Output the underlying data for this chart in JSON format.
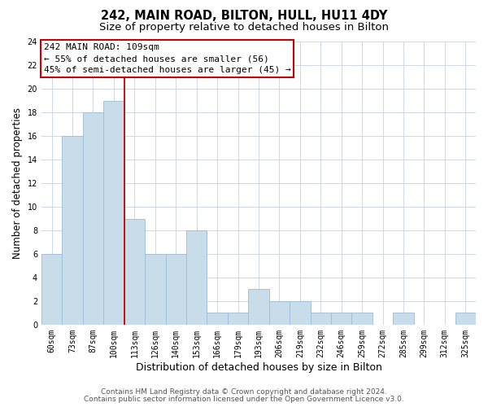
{
  "title": "242, MAIN ROAD, BILTON, HULL, HU11 4DY",
  "subtitle": "Size of property relative to detached houses in Bilton",
  "xlabel": "Distribution of detached houses by size in Bilton",
  "ylabel": "Number of detached properties",
  "categories": [
    "60sqm",
    "73sqm",
    "87sqm",
    "100sqm",
    "113sqm",
    "126sqm",
    "140sqm",
    "153sqm",
    "166sqm",
    "179sqm",
    "193sqm",
    "206sqm",
    "219sqm",
    "232sqm",
    "246sqm",
    "259sqm",
    "272sqm",
    "285sqm",
    "299sqm",
    "312sqm",
    "325sqm"
  ],
  "values": [
    6,
    16,
    18,
    19,
    9,
    6,
    6,
    8,
    1,
    1,
    3,
    2,
    2,
    1,
    1,
    1,
    0,
    1,
    0,
    0,
    1
  ],
  "bar_color": "#c9dcea",
  "bar_edge_color": "#9bbdd4",
  "vline_x": 3.5,
  "vline_color": "#cc0000",
  "annotation_line1": "242 MAIN ROAD: 109sqm",
  "annotation_line2": "← 55% of detached houses are smaller (56)",
  "annotation_line3": "45% of semi-detached houses are larger (45) →",
  "ylim": [
    0,
    24
  ],
  "yticks": [
    0,
    2,
    4,
    6,
    8,
    10,
    12,
    14,
    16,
    18,
    20,
    22,
    24
  ],
  "footer_line1": "Contains HM Land Registry data © Crown copyright and database right 2024.",
  "footer_line2": "Contains public sector information licensed under the Open Government Licence v3.0.",
  "bg_color": "#ffffff",
  "grid_color": "#ccd9e5",
  "title_fontsize": 10.5,
  "subtitle_fontsize": 9.5,
  "tick_fontsize": 7,
  "ylabel_fontsize": 8.5,
  "xlabel_fontsize": 9,
  "annotation_fontsize": 8,
  "footer_fontsize": 6.5
}
